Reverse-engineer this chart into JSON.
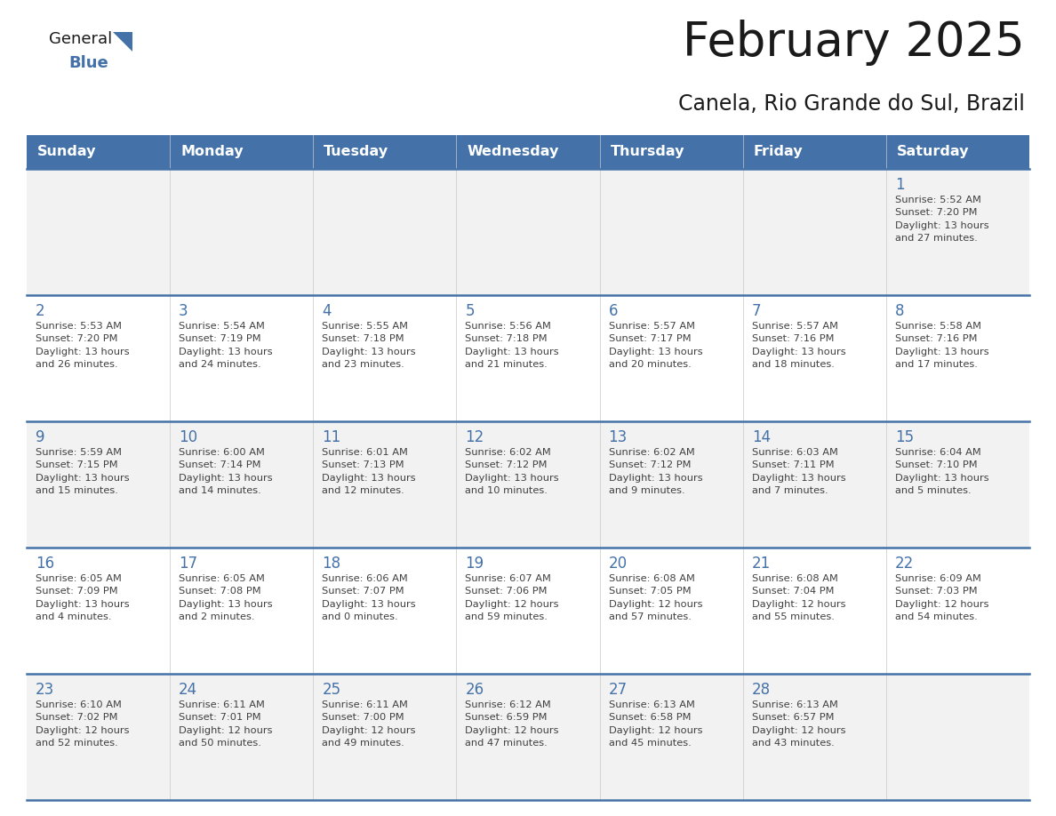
{
  "title": "February 2025",
  "subtitle": "Canela, Rio Grande do Sul, Brazil",
  "header_color": "#4472A8",
  "header_text_color": "#FFFFFF",
  "cell_bg_even": "#F2F2F2",
  "cell_bg_odd": "#FFFFFF",
  "day_number_color": "#4472A8",
  "text_color": "#404040",
  "line_color": "#4472A8",
  "days_of_week": [
    "Sunday",
    "Monday",
    "Tuesday",
    "Wednesday",
    "Thursday",
    "Friday",
    "Saturday"
  ],
  "weeks": [
    [
      {
        "day": null,
        "info": null
      },
      {
        "day": null,
        "info": null
      },
      {
        "day": null,
        "info": null
      },
      {
        "day": null,
        "info": null
      },
      {
        "day": null,
        "info": null
      },
      {
        "day": null,
        "info": null
      },
      {
        "day": "1",
        "info": "Sunrise: 5:52 AM\nSunset: 7:20 PM\nDaylight: 13 hours\nand 27 minutes."
      }
    ],
    [
      {
        "day": "2",
        "info": "Sunrise: 5:53 AM\nSunset: 7:20 PM\nDaylight: 13 hours\nand 26 minutes."
      },
      {
        "day": "3",
        "info": "Sunrise: 5:54 AM\nSunset: 7:19 PM\nDaylight: 13 hours\nand 24 minutes."
      },
      {
        "day": "4",
        "info": "Sunrise: 5:55 AM\nSunset: 7:18 PM\nDaylight: 13 hours\nand 23 minutes."
      },
      {
        "day": "5",
        "info": "Sunrise: 5:56 AM\nSunset: 7:18 PM\nDaylight: 13 hours\nand 21 minutes."
      },
      {
        "day": "6",
        "info": "Sunrise: 5:57 AM\nSunset: 7:17 PM\nDaylight: 13 hours\nand 20 minutes."
      },
      {
        "day": "7",
        "info": "Sunrise: 5:57 AM\nSunset: 7:16 PM\nDaylight: 13 hours\nand 18 minutes."
      },
      {
        "day": "8",
        "info": "Sunrise: 5:58 AM\nSunset: 7:16 PM\nDaylight: 13 hours\nand 17 minutes."
      }
    ],
    [
      {
        "day": "9",
        "info": "Sunrise: 5:59 AM\nSunset: 7:15 PM\nDaylight: 13 hours\nand 15 minutes."
      },
      {
        "day": "10",
        "info": "Sunrise: 6:00 AM\nSunset: 7:14 PM\nDaylight: 13 hours\nand 14 minutes."
      },
      {
        "day": "11",
        "info": "Sunrise: 6:01 AM\nSunset: 7:13 PM\nDaylight: 13 hours\nand 12 minutes."
      },
      {
        "day": "12",
        "info": "Sunrise: 6:02 AM\nSunset: 7:12 PM\nDaylight: 13 hours\nand 10 minutes."
      },
      {
        "day": "13",
        "info": "Sunrise: 6:02 AM\nSunset: 7:12 PM\nDaylight: 13 hours\nand 9 minutes."
      },
      {
        "day": "14",
        "info": "Sunrise: 6:03 AM\nSunset: 7:11 PM\nDaylight: 13 hours\nand 7 minutes."
      },
      {
        "day": "15",
        "info": "Sunrise: 6:04 AM\nSunset: 7:10 PM\nDaylight: 13 hours\nand 5 minutes."
      }
    ],
    [
      {
        "day": "16",
        "info": "Sunrise: 6:05 AM\nSunset: 7:09 PM\nDaylight: 13 hours\nand 4 minutes."
      },
      {
        "day": "17",
        "info": "Sunrise: 6:05 AM\nSunset: 7:08 PM\nDaylight: 13 hours\nand 2 minutes."
      },
      {
        "day": "18",
        "info": "Sunrise: 6:06 AM\nSunset: 7:07 PM\nDaylight: 13 hours\nand 0 minutes."
      },
      {
        "day": "19",
        "info": "Sunrise: 6:07 AM\nSunset: 7:06 PM\nDaylight: 12 hours\nand 59 minutes."
      },
      {
        "day": "20",
        "info": "Sunrise: 6:08 AM\nSunset: 7:05 PM\nDaylight: 12 hours\nand 57 minutes."
      },
      {
        "day": "21",
        "info": "Sunrise: 6:08 AM\nSunset: 7:04 PM\nDaylight: 12 hours\nand 55 minutes."
      },
      {
        "day": "22",
        "info": "Sunrise: 6:09 AM\nSunset: 7:03 PM\nDaylight: 12 hours\nand 54 minutes."
      }
    ],
    [
      {
        "day": "23",
        "info": "Sunrise: 6:10 AM\nSunset: 7:02 PM\nDaylight: 12 hours\nand 52 minutes."
      },
      {
        "day": "24",
        "info": "Sunrise: 6:11 AM\nSunset: 7:01 PM\nDaylight: 12 hours\nand 50 minutes."
      },
      {
        "day": "25",
        "info": "Sunrise: 6:11 AM\nSunset: 7:00 PM\nDaylight: 12 hours\nand 49 minutes."
      },
      {
        "day": "26",
        "info": "Sunrise: 6:12 AM\nSunset: 6:59 PM\nDaylight: 12 hours\nand 47 minutes."
      },
      {
        "day": "27",
        "info": "Sunrise: 6:13 AM\nSunset: 6:58 PM\nDaylight: 12 hours\nand 45 minutes."
      },
      {
        "day": "28",
        "info": "Sunrise: 6:13 AM\nSunset: 6:57 PM\nDaylight: 12 hours\nand 43 minutes."
      },
      {
        "day": null,
        "info": null
      }
    ]
  ],
  "fig_width": 11.88,
  "fig_height": 9.18,
  "dpi": 100
}
